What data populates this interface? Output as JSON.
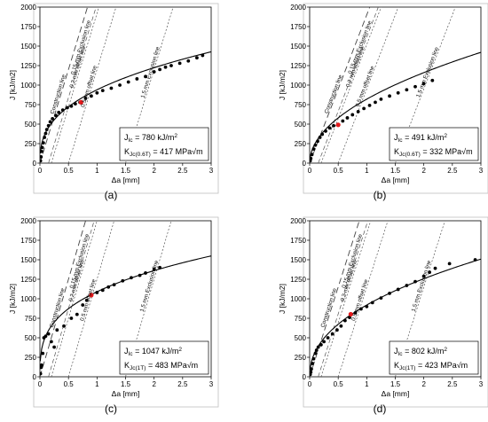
{
  "layout_labels": [
    "(a)",
    "(b)",
    "(c)",
    "(d)"
  ],
  "common": {
    "xlabel": "Δa [mm]",
    "ylabel": "J [kJ/m2]",
    "xlim": [
      0,
      3
    ],
    "ylim": [
      0,
      2000
    ],
    "xticks": [
      "0",
      "0.5",
      "1",
      "1.5",
      "2",
      "2.5",
      "3"
    ],
    "yticks": [
      "0",
      "250",
      "500",
      "750",
      "1000",
      "1250",
      "1500",
      "1750",
      "2000"
    ],
    "line_labels": {
      "construction": "Construction line",
      "exclusion_015": "0.15 mm Exclusion line",
      "offset_02": "0.2 mm offset line",
      "offset_05": "0.5 mm offset line",
      "exclusion_15": "1.5 mm Exclusion line"
    },
    "colors": {
      "data": "#000000",
      "jic_point": "#e31a1c",
      "fit": "#000000",
      "guide": "#555555"
    }
  },
  "chart_data": [
    {
      "type": "scatter",
      "label": "(a)",
      "jic_text": "J Ic = 780 kJ/m²",
      "k_text": "K Jc(0.6T) = 417 MPa√m",
      "jic_parts": [
        "J",
        "Ic",
        " = 780 kJ/m",
        "2"
      ],
      "k_parts": [
        "K",
        "Jc(0.6T)",
        " = 417 MPa√m"
      ],
      "construction_slope": 2400,
      "fit": {
        "C": 940,
        "n": 0.38
      },
      "jic_point": [
        0.72,
        780
      ],
      "series": [
        {
          "points": [
            [
              0.01,
              30
            ],
            [
              0.02,
              80
            ],
            [
              0.03,
              150
            ],
            [
              0.04,
              200
            ],
            [
              0.06,
              260
            ],
            [
              0.08,
              330
            ],
            [
              0.1,
              380
            ],
            [
              0.12,
              430
            ],
            [
              0.15,
              480
            ],
            [
              0.18,
              530
            ],
            [
              0.22,
              570
            ],
            [
              0.28,
              610
            ],
            [
              0.33,
              650
            ],
            [
              0.4,
              680
            ],
            [
              0.48,
              710
            ],
            [
              0.55,
              730
            ],
            [
              0.62,
              760
            ],
            [
              0.7,
              780
            ],
            [
              0.8,
              830
            ],
            [
              0.9,
              860
            ],
            [
              1.0,
              900
            ],
            [
              1.1,
              930
            ],
            [
              1.25,
              960
            ],
            [
              1.4,
              1000
            ],
            [
              1.55,
              1040
            ],
            [
              1.7,
              1080
            ],
            [
              1.85,
              1110
            ],
            [
              2.0,
              1170
            ],
            [
              2.1,
              1200
            ],
            [
              2.2,
              1230
            ],
            [
              2.3,
              1250
            ],
            [
              2.45,
              1280
            ],
            [
              2.6,
              1310
            ],
            [
              2.75,
              1350
            ],
            [
              2.85,
              1380
            ]
          ]
        }
      ]
    },
    {
      "type": "scatter",
      "label": "(b)",
      "jic_parts": [
        "J",
        "Ic",
        " = 491 kJ/m",
        "2"
      ],
      "k_parts": [
        "K",
        "Jc(0.6T)",
        " = 332 MPa√m"
      ],
      "construction_slope": 1900,
      "fit": {
        "C": 820,
        "n": 0.5
      },
      "jic_point": [
        0.5,
        491
      ],
      "series": [
        {
          "points": [
            [
              0.01,
              30
            ],
            [
              0.02,
              60
            ],
            [
              0.04,
              110
            ],
            [
              0.07,
              180
            ],
            [
              0.1,
              230
            ],
            [
              0.14,
              280
            ],
            [
              0.18,
              330
            ],
            [
              0.22,
              370
            ],
            [
              0.28,
              410
            ],
            [
              0.35,
              450
            ],
            [
              0.42,
              480
            ],
            [
              0.5,
              491
            ],
            [
              0.58,
              540
            ],
            [
              0.66,
              580
            ],
            [
              0.75,
              620
            ],
            [
              0.85,
              660
            ],
            [
              0.95,
              700
            ],
            [
              1.05,
              740
            ],
            [
              1.15,
              780
            ],
            [
              1.25,
              820
            ],
            [
              1.4,
              860
            ],
            [
              1.55,
              900
            ],
            [
              1.7,
              940
            ],
            [
              1.85,
              980
            ],
            [
              2.0,
              1020
            ],
            [
              2.15,
              1060
            ]
          ]
        }
      ]
    },
    {
      "type": "scatter",
      "label": "(c)",
      "jic_parts": [
        "J",
        "Ic",
        " = 1047 kJ/m",
        "2"
      ],
      "k_parts": [
        "K",
        "Jc(1T)",
        " = 483 MPa√m"
      ],
      "construction_slope": 2500,
      "fit": {
        "C": 1090,
        "n": 0.32
      },
      "jic_point": [
        0.9,
        1047
      ],
      "series": [
        {
          "points": [
            [
              0.01,
              40
            ],
            [
              0.02,
              120
            ],
            [
              0.03,
              150
            ],
            [
              0.05,
              300
            ],
            [
              0.07,
              500
            ],
            [
              0.1,
              520
            ],
            [
              0.15,
              550
            ],
            [
              0.2,
              450
            ],
            [
              0.25,
              380
            ],
            [
              0.3,
              600
            ],
            [
              0.42,
              650
            ],
            [
              0.55,
              750
            ],
            [
              0.65,
              800
            ],
            [
              0.75,
              920
            ],
            [
              0.82,
              980
            ],
            [
              0.9,
              1047
            ],
            [
              1.0,
              1080
            ],
            [
              1.1,
              1110
            ],
            [
              1.2,
              1150
            ],
            [
              1.3,
              1180
            ],
            [
              1.45,
              1230
            ],
            [
              1.6,
              1270
            ],
            [
              1.75,
              1300
            ],
            [
              1.85,
              1330
            ],
            [
              2.0,
              1380
            ],
            [
              2.1,
              1400
            ]
          ]
        }
      ]
    },
    {
      "type": "scatter",
      "label": "(d)",
      "jic_parts": [
        "J",
        "Ic",
        " = 802 kJ/m",
        "2"
      ],
      "k_parts": [
        "K",
        "Jc(1T)",
        " = 423 MPa√m"
      ],
      "construction_slope": 2300,
      "fit": {
        "C": 920,
        "n": 0.45
      },
      "jic_point": [
        0.72,
        802
      ],
      "series": [
        {
          "points": [
            [
              0.01,
              30
            ],
            [
              0.02,
              60
            ],
            [
              0.03,
              100
            ],
            [
              0.05,
              170
            ],
            [
              0.07,
              230
            ],
            [
              0.1,
              300
            ],
            [
              0.12,
              340
            ],
            [
              0.15,
              380
            ],
            [
              0.2,
              410
            ],
            [
              0.25,
              450
            ],
            [
              0.32,
              500
            ],
            [
              0.4,
              550
            ],
            [
              0.48,
              600
            ],
            [
              0.55,
              650
            ],
            [
              0.62,
              720
            ],
            [
              0.7,
              760
            ],
            [
              0.8,
              820
            ],
            [
              0.9,
              870
            ],
            [
              1.0,
              900
            ],
            [
              1.1,
              950
            ],
            [
              1.25,
              1010
            ],
            [
              1.4,
              1070
            ],
            [
              1.55,
              1120
            ],
            [
              1.7,
              1170
            ],
            [
              1.85,
              1220
            ],
            [
              2.0,
              1290
            ],
            [
              2.1,
              1340
            ],
            [
              2.2,
              1390
            ],
            [
              2.45,
              1450
            ],
            [
              2.9,
              1500
            ]
          ]
        }
      ]
    }
  ]
}
